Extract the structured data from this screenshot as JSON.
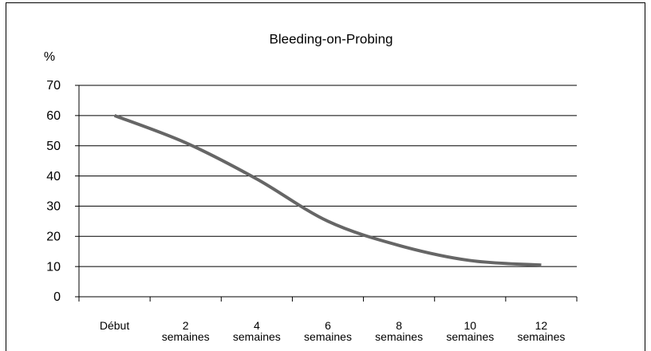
{
  "chart_data": {
    "type": "line",
    "title": "Bleeding-on-Probing",
    "y_label": "%",
    "categories": [
      "Début",
      "2 semaines",
      "4 semaines",
      "6 semaines",
      "8 semaines",
      "10 semaines",
      "12 semaines"
    ],
    "series": [
      {
        "name": "Bleeding-on-Probing",
        "color": "#666666",
        "values": [
          60,
          51,
          39,
          25,
          17,
          12,
          10.5
        ]
      }
    ],
    "ylim": [
      0,
      70
    ],
    "yticks": [
      0,
      10,
      20,
      30,
      40,
      50,
      60,
      70
    ],
    "grid": true
  }
}
